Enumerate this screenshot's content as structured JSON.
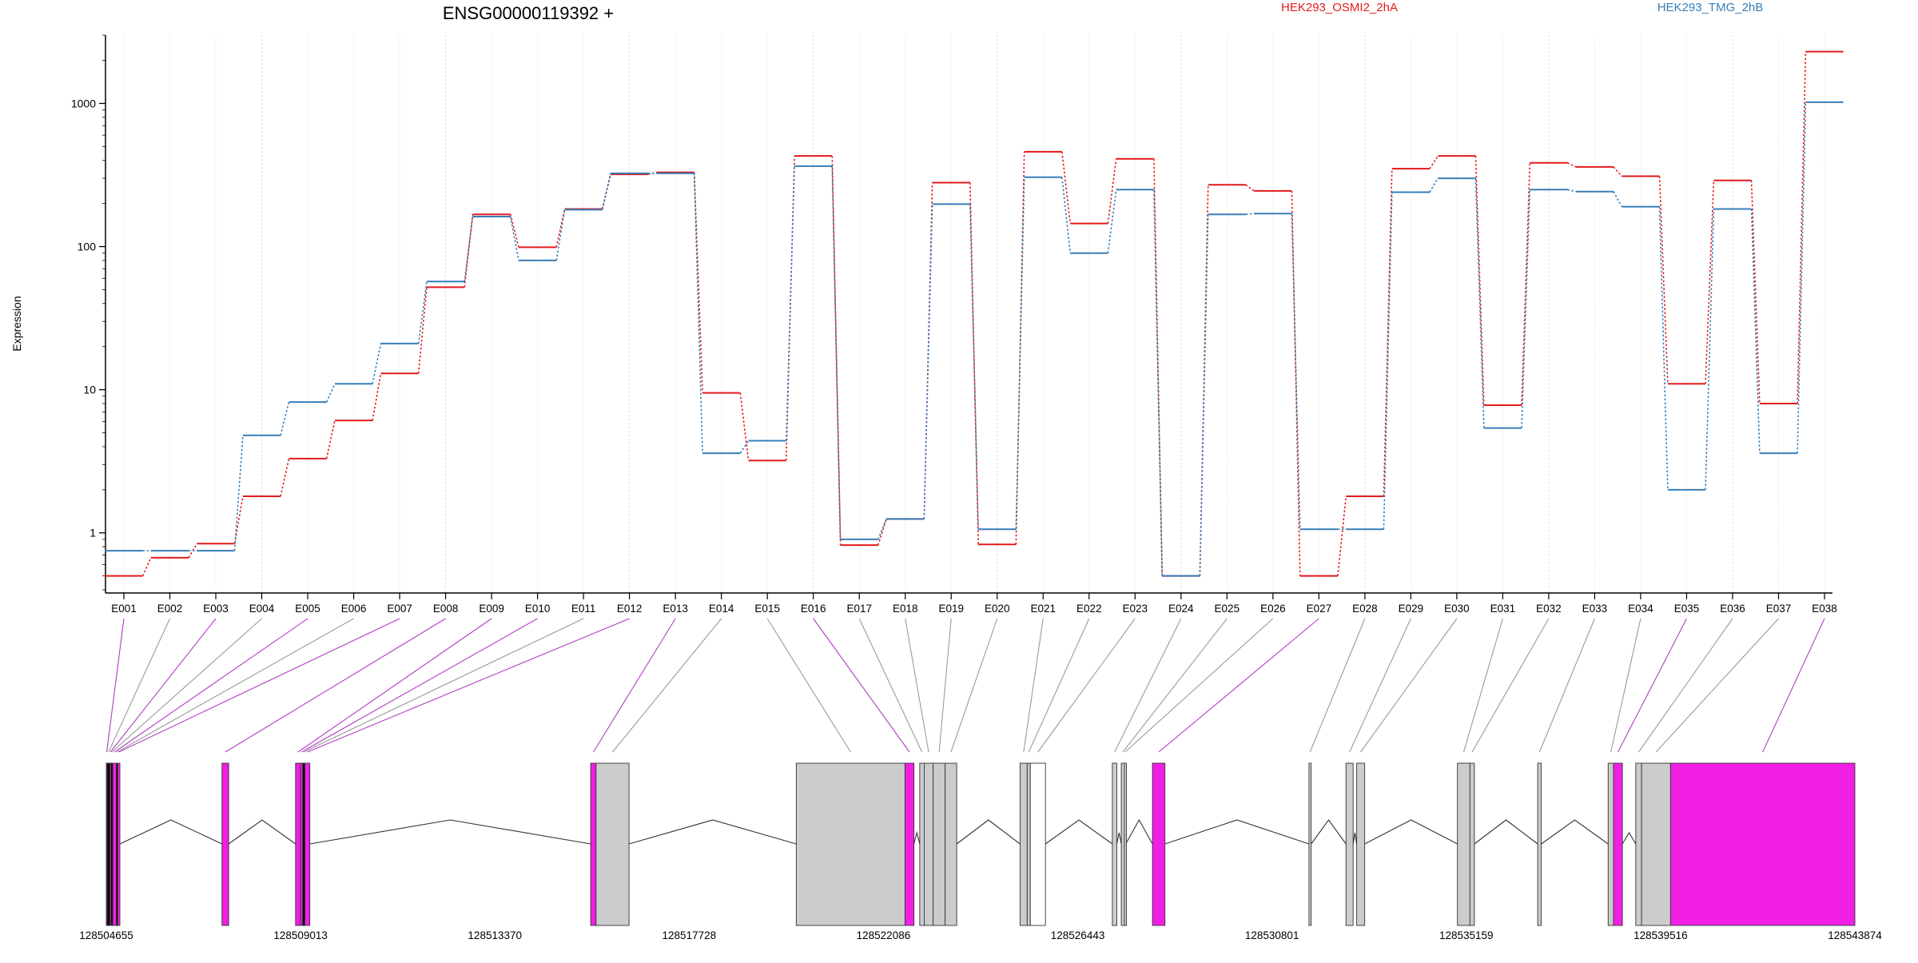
{
  "chart_data": {
    "type": "line",
    "title": "ENSG00000119392 +",
    "ylabel": "Expression",
    "yscale": "log",
    "ylim": [
      0.38,
      3000
    ],
    "yticks": [
      1,
      10,
      100,
      1000
    ],
    "ytick_labels": [
      "1",
      "10",
      "100",
      "1000"
    ],
    "grid": true,
    "legend_placement": "top-right",
    "categories": [
      "E001",
      "E002",
      "E003",
      "E004",
      "E005",
      "E006",
      "E007",
      "E008",
      "E009",
      "E010",
      "E011",
      "E012",
      "E013",
      "E014",
      "E015",
      "E016",
      "E017",
      "E018",
      "E019",
      "E020",
      "E021",
      "E022",
      "E023",
      "E024",
      "E025",
      "E026",
      "E027",
      "E028",
      "E029",
      "E030",
      "E031",
      "E032",
      "E033",
      "E034",
      "E035",
      "E036",
      "E037",
      "E038"
    ],
    "series": [
      {
        "name": "HEK293_OSMI2_2hA",
        "color": "#E31A1C",
        "values": [
          0.5,
          0.67,
          0.84,
          1.8,
          3.3,
          6.1,
          13,
          52,
          168,
          99,
          183,
          320,
          330,
          9.5,
          3.2,
          430,
          0.82,
          1.25,
          280,
          0.83,
          460,
          145,
          410,
          0.5,
          270,
          245,
          0.5,
          1.8,
          350,
          430,
          7.8,
          385,
          360,
          310,
          11,
          290,
          8,
          2300
        ]
      },
      {
        "name": "HEK293_TMG_2hB",
        "color": "#377EB8",
        "values": [
          0.75,
          0.75,
          0.75,
          4.8,
          8.2,
          11,
          21,
          57,
          162,
          80,
          181,
          325,
          325,
          3.6,
          4.4,
          365,
          0.9,
          1.25,
          198,
          1.06,
          305,
          90,
          250,
          0.5,
          168,
          170,
          1.06,
          1.06,
          240,
          300,
          5.4,
          250,
          242,
          190,
          2.0,
          183,
          3.6,
          1020
        ]
      }
    ],
    "gene_model": {
      "coordinate_labels": [
        "128504655",
        "128509013",
        "128513370",
        "128517728",
        "128522086",
        "128526443",
        "128530801",
        "128535159",
        "128539516",
        "128543874"
      ],
      "exons": [
        {
          "id": "E001",
          "start": 128504655,
          "end": 128504675,
          "color": "#F11FE3"
        },
        {
          "id": "E002",
          "start": 128504675,
          "end": 128504735,
          "color": "#000000"
        },
        {
          "id": "E003",
          "start": 128504735,
          "end": 128504760,
          "color": "#F11FE3"
        },
        {
          "id": "E004",
          "start": 128504760,
          "end": 128504800,
          "color": "#000000"
        },
        {
          "id": "E005",
          "start": 128504800,
          "end": 128504880,
          "color": "#F11FE3"
        },
        {
          "id": "E006",
          "start": 128504880,
          "end": 128504910,
          "color": "#000000"
        },
        {
          "id": "E007",
          "start": 128504910,
          "end": 128504960,
          "color": "#F11FE3"
        },
        {
          "id": "E008",
          "start": 128507250,
          "end": 128507400,
          "color": "#F11FE3"
        },
        {
          "id": "E009",
          "start": 128508900,
          "end": 128509010,
          "color": "#F11FE3"
        },
        {
          "id": "E010",
          "start": 128509010,
          "end": 128509060,
          "color": "#F11FE3"
        },
        {
          "id": "E011",
          "start": 128509060,
          "end": 128509110,
          "color": "#000000"
        },
        {
          "id": "E012",
          "start": 128509110,
          "end": 128509220,
          "color": "#F11FE3"
        },
        {
          "id": "E013",
          "start": 128515520,
          "end": 128515640,
          "color": "#F11FE3"
        },
        {
          "id": "E014",
          "start": 128515640,
          "end": 128516380,
          "color": "#CCCCCC"
        },
        {
          "id": "E015",
          "start": 128520130,
          "end": 128522570,
          "color": "#CCCCCC"
        },
        {
          "id": "E016",
          "start": 128522570,
          "end": 128522770,
          "color": "#F11FE3"
        },
        {
          "id": "E017",
          "start": 128522900,
          "end": 128523000,
          "color": "#CCCCCC"
        },
        {
          "id": "E018",
          "start": 128523000,
          "end": 128523200,
          "color": "#CCCCCC"
        },
        {
          "id": "E019",
          "start": 128523200,
          "end": 128523470,
          "color": "#CCCCCC"
        },
        {
          "id": "E020",
          "start": 128523470,
          "end": 128523730,
          "color": "#CCCCCC"
        },
        {
          "id": "E021",
          "start": 128525150,
          "end": 128525310,
          "color": "#CCCCCC"
        },
        {
          "id": "E022",
          "start": 128525310,
          "end": 128525380,
          "color": "#CCCCCC"
        },
        {
          "id": "E023",
          "start": 128525380,
          "end": 128525720,
          "color": "#FFFFFF"
        },
        {
          "id": "E024",
          "start": 128527220,
          "end": 128527320,
          "color": "#CCCCCC"
        },
        {
          "id": "E025",
          "start": 128527420,
          "end": 128527490,
          "color": "#CCCCCC"
        },
        {
          "id": "E026",
          "start": 128527490,
          "end": 128527520,
          "color": "#CCCCCC"
        },
        {
          "id": "E027",
          "start": 128528120,
          "end": 128528400,
          "color": "#F11FE3"
        },
        {
          "id": "E028",
          "start": 128531630,
          "end": 128531680,
          "color": "#CCCCCC"
        },
        {
          "id": "E029",
          "start": 128532460,
          "end": 128532620,
          "color": "#CCCCCC"
        },
        {
          "id": "E030",
          "start": 128532700,
          "end": 128532880,
          "color": "#CCCCCC"
        },
        {
          "id": "E031",
          "start": 128534960,
          "end": 128535240,
          "color": "#CCCCCC"
        },
        {
          "id": "E032",
          "start": 128535240,
          "end": 128535340,
          "color": "#CCCCCC"
        },
        {
          "id": "E033",
          "start": 128536760,
          "end": 128536840,
          "color": "#CCCCCC"
        },
        {
          "id": "E034",
          "start": 128538340,
          "end": 128538460,
          "color": "#CCCCCC"
        },
        {
          "id": "E035",
          "start": 128538460,
          "end": 128538660,
          "color": "#F11FE3"
        },
        {
          "id": "E036",
          "start": 128538960,
          "end": 128539090,
          "color": "#CCCCCC"
        },
        {
          "id": "E037",
          "start": 128539090,
          "end": 128539740,
          "color": "#CCCCCC"
        },
        {
          "id": "E038",
          "start": 128539740,
          "end": 128543874,
          "color": "#F11FE3"
        }
      ]
    }
  }
}
